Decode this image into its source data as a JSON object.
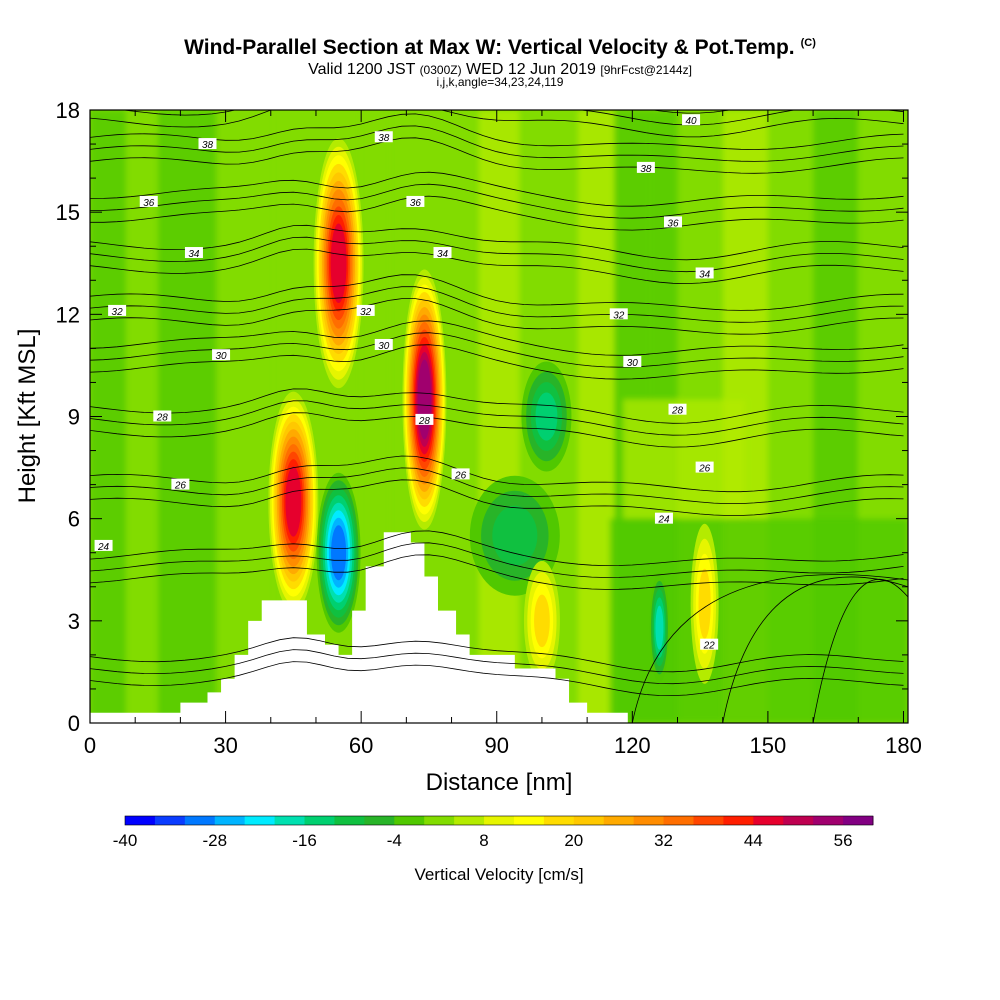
{
  "header": {
    "title": "Wind-Parallel Section at Max W: Vertical Velocity & Pot.Temp.",
    "copyright": "(C)",
    "valid_prefix": "Valid 1200 JST",
    "valid_utc": "(0300Z)",
    "valid_date": "WED 12 Jun 2019",
    "forecast": "[9hrFcst@2144z]",
    "indices": "i,j,k,angle=34,23,24,119"
  },
  "chart_data": {
    "type": "heatmap",
    "xlabel": "Distance [nm]",
    "ylabel": "Height [Kft MSL]",
    "xlim": [
      0,
      181
    ],
    "ylim": [
      0,
      18
    ],
    "xticks": [
      0,
      30,
      60,
      90,
      120,
      150,
      180
    ],
    "yticks": [
      0,
      3,
      6,
      9,
      12,
      15,
      18
    ],
    "colorbar": {
      "label": "Vertical Velocity [cm/s]",
      "range": [
        -40,
        60
      ],
      "step": 4,
      "tick_values": [
        -40,
        -28,
        -16,
        -4,
        8,
        20,
        32,
        44,
        56
      ],
      "colors": [
        "#0000ff",
        "#0a3cff",
        "#0078ff",
        "#00b4ff",
        "#00ebff",
        "#00e0b0",
        "#00d070",
        "#10c040",
        "#28b428",
        "#50c800",
        "#82dc00",
        "#b4eb00",
        "#e6f500",
        "#ffff00",
        "#ffdc00",
        "#ffc800",
        "#ffaa00",
        "#ff8c00",
        "#ff6e00",
        "#ff4600",
        "#ff1e00",
        "#e6002d",
        "#be0050",
        "#a0006e",
        "#820082"
      ]
    },
    "updrafts": [
      {
        "x": 45,
        "y": 6.5,
        "peak_cms": 44
      },
      {
        "x": 55,
        "y": 13.5,
        "peak_cms": 42
      },
      {
        "x": 74,
        "y": 9.5,
        "peak_cms": 52
      },
      {
        "x": 100,
        "y": 3.0,
        "peak_cms": 14
      },
      {
        "x": 136,
        "y": 3.5,
        "peak_cms": 16
      }
    ],
    "downdrafts": [
      {
        "x": 55,
        "y": 5.0,
        "peak_cms": -30
      },
      {
        "x": 101,
        "y": 9.0,
        "peak_cms": -16
      },
      {
        "x": 126,
        "y": 2.8,
        "peak_cms": -18
      },
      {
        "x": 94,
        "y": 5.5,
        "peak_cms": -10
      }
    ],
    "terrain": [
      {
        "x": 0,
        "h": 0.3
      },
      {
        "x": 20,
        "h": 0.3
      },
      {
        "x": 20,
        "h": 0.6
      },
      {
        "x": 26,
        "h": 0.6
      },
      {
        "x": 26,
        "h": 0.9
      },
      {
        "x": 29,
        "h": 0.9
      },
      {
        "x": 29,
        "h": 1.3
      },
      {
        "x": 32,
        "h": 1.3
      },
      {
        "x": 32,
        "h": 2.0
      },
      {
        "x": 35,
        "h": 2.0
      },
      {
        "x": 35,
        "h": 3.0
      },
      {
        "x": 38,
        "h": 3.0
      },
      {
        "x": 38,
        "h": 3.6
      },
      {
        "x": 48,
        "h": 3.6
      },
      {
        "x": 48,
        "h": 2.6
      },
      {
        "x": 52,
        "h": 2.6
      },
      {
        "x": 52,
        "h": 2.3
      },
      {
        "x": 55,
        "h": 2.3
      },
      {
        "x": 55,
        "h": 2.0
      },
      {
        "x": 58,
        "h": 2.0
      },
      {
        "x": 58,
        "h": 3.3
      },
      {
        "x": 61,
        "h": 3.3
      },
      {
        "x": 61,
        "h": 4.6
      },
      {
        "x": 65,
        "h": 4.6
      },
      {
        "x": 65,
        "h": 5.6
      },
      {
        "x": 71,
        "h": 5.6
      },
      {
        "x": 71,
        "h": 5.3
      },
      {
        "x": 74,
        "h": 5.3
      },
      {
        "x": 74,
        "h": 4.3
      },
      {
        "x": 77,
        "h": 4.3
      },
      {
        "x": 77,
        "h": 3.3
      },
      {
        "x": 81,
        "h": 3.3
      },
      {
        "x": 81,
        "h": 2.6
      },
      {
        "x": 84,
        "h": 2.6
      },
      {
        "x": 84,
        "h": 2.0
      },
      {
        "x": 94,
        "h": 2.0
      },
      {
        "x": 94,
        "h": 1.6
      },
      {
        "x": 103,
        "h": 1.6
      },
      {
        "x": 103,
        "h": 1.3
      },
      {
        "x": 106,
        "h": 1.3
      },
      {
        "x": 106,
        "h": 0.6
      },
      {
        "x": 110,
        "h": 0.6
      },
      {
        "x": 110,
        "h": 0.3
      },
      {
        "x": 119,
        "h": 0.3
      },
      {
        "x": 119,
        "h": 0.0
      },
      {
        "x": 181,
        "h": 0.0
      }
    ],
    "theta_contours": [
      {
        "value": 22,
        "label": "22",
        "label_x": 137,
        "label_y": 2.3
      },
      {
        "value": 24,
        "label": "24",
        "label_x": 3,
        "label_y": 5.2
      },
      {
        "value": 24,
        "label": "24",
        "label_x": 127,
        "label_y": 6.0
      },
      {
        "value": 26,
        "label": "26",
        "label_x": 20,
        "label_y": 7.0
      },
      {
        "value": 26,
        "label": "26",
        "label_x": 82,
        "label_y": 7.3
      },
      {
        "value": 26,
        "label": "26",
        "label_x": 136,
        "label_y": 7.5
      },
      {
        "value": 28,
        "label": "28",
        "label_x": 16,
        "label_y": 9.0
      },
      {
        "value": 28,
        "label": "28",
        "label_x": 74,
        "label_y": 8.9
      },
      {
        "value": 28,
        "label": "28",
        "label_x": 130,
        "label_y": 9.2
      },
      {
        "value": 30,
        "label": "30",
        "label_x": 29,
        "label_y": 10.8
      },
      {
        "value": 30,
        "label": "30",
        "label_x": 65,
        "label_y": 11.1
      },
      {
        "value": 30,
        "label": "30",
        "label_x": 120,
        "label_y": 10.6
      },
      {
        "value": 32,
        "label": "32",
        "label_x": 6,
        "label_y": 12.1
      },
      {
        "value": 32,
        "label": "32",
        "label_x": 61,
        "label_y": 12.1
      },
      {
        "value": 32,
        "label": "32",
        "label_x": 117,
        "label_y": 12.0
      },
      {
        "value": 34,
        "label": "34",
        "label_x": 23,
        "label_y": 13.8
      },
      {
        "value": 34,
        "label": "34",
        "label_x": 78,
        "label_y": 13.8
      },
      {
        "value": 34,
        "label": "34",
        "label_x": 136,
        "label_y": 13.2
      },
      {
        "value": 36,
        "label": "36",
        "label_x": 13,
        "label_y": 15.3
      },
      {
        "value": 36,
        "label": "36",
        "label_x": 72,
        "label_y": 15.3
      },
      {
        "value": 36,
        "label": "36",
        "label_x": 129,
        "label_y": 14.7
      },
      {
        "value": 38,
        "label": "38",
        "label_x": 26,
        "label_y": 17.0
      },
      {
        "value": 38,
        "label": "38",
        "label_x": 65,
        "label_y": 17.2
      },
      {
        "value": 38,
        "label": "38",
        "label_x": 123,
        "label_y": 16.3
      },
      {
        "value": 40,
        "label": "40",
        "label_x": 133,
        "label_y": 17.7
      }
    ]
  }
}
